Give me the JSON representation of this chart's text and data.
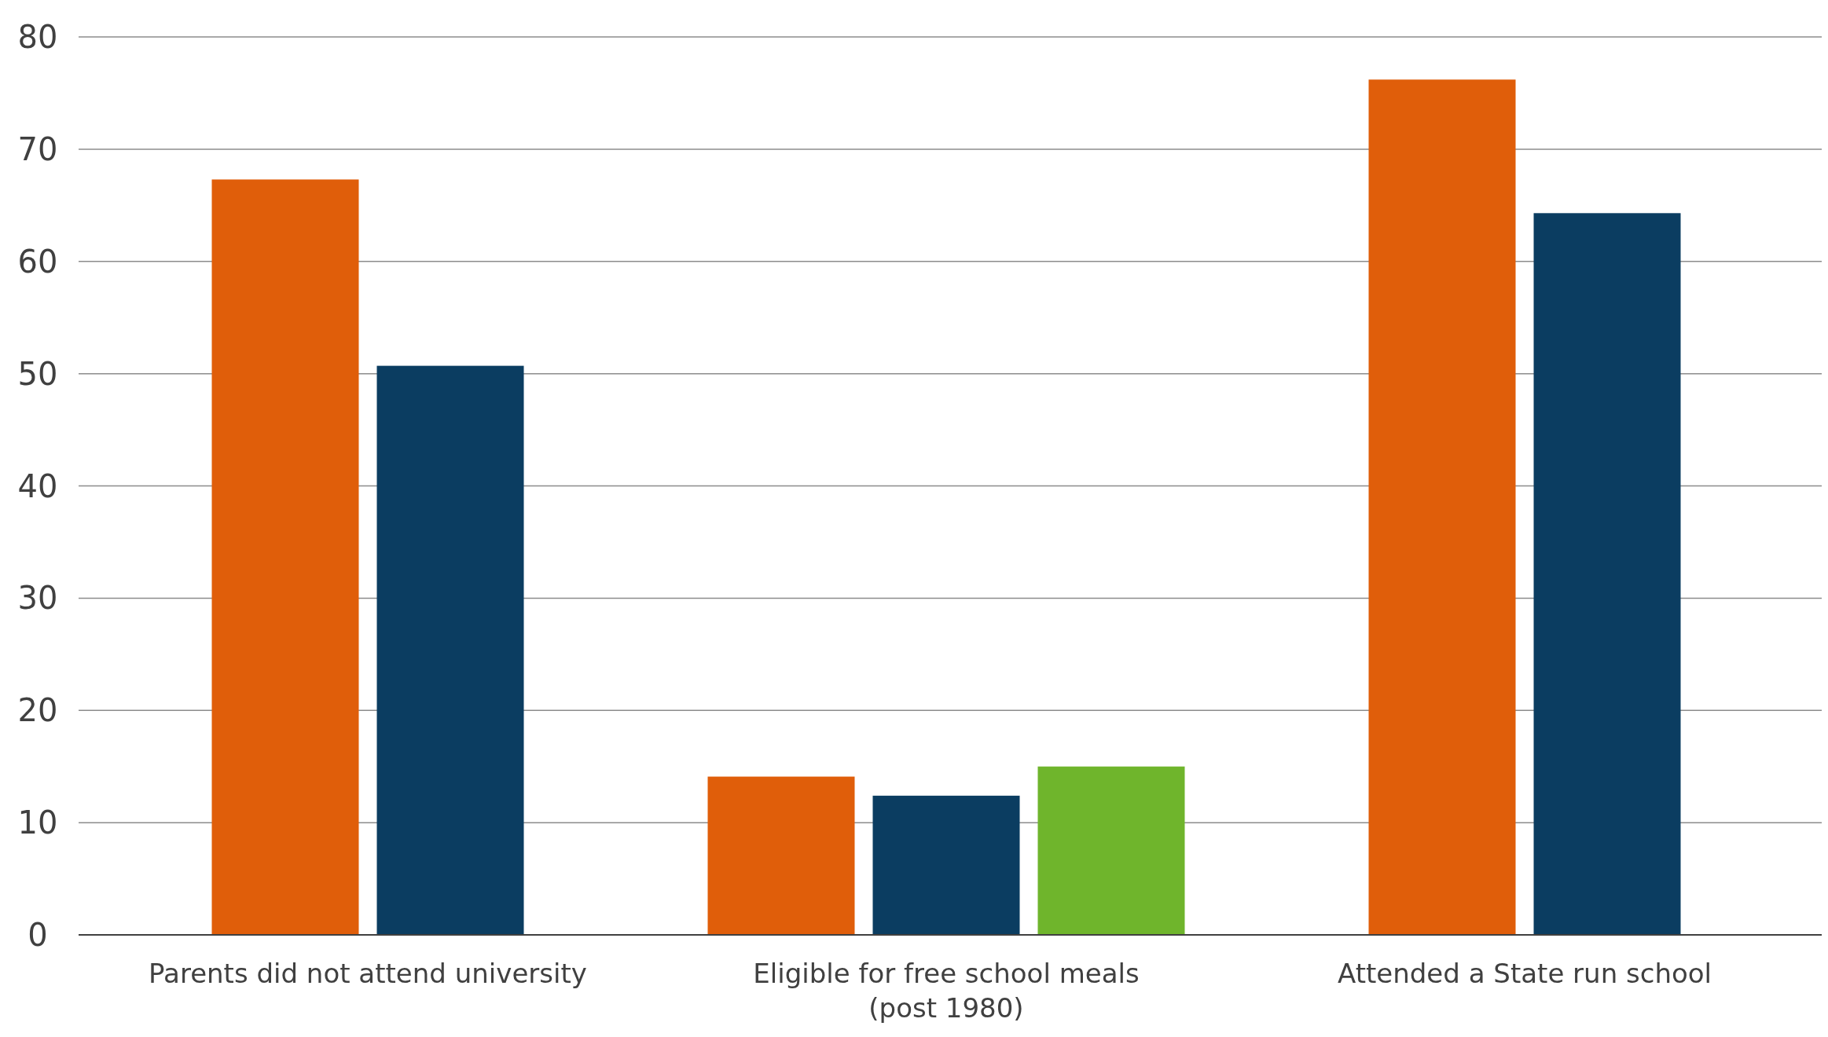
{
  "chart_data": {
    "type": "bar",
    "categories": [
      "Parents did not attend university",
      "Eligible for free school meals\n(post 1980)",
      "Attended a State run school"
    ],
    "series": [
      {
        "color": "#e05e0a",
        "values": [
          67.3,
          14.1,
          76.2
        ]
      },
      {
        "color": "#0b3d61",
        "values": [
          50.7,
          12.4,
          64.3
        ]
      },
      {
        "color": "#6fb52c",
        "values": [
          null,
          15.0,
          null
        ]
      }
    ],
    "ylim": [
      0,
      80
    ],
    "yticks": [
      0,
      10,
      20,
      30,
      40,
      50,
      60,
      70,
      80
    ],
    "grid": "y"
  }
}
